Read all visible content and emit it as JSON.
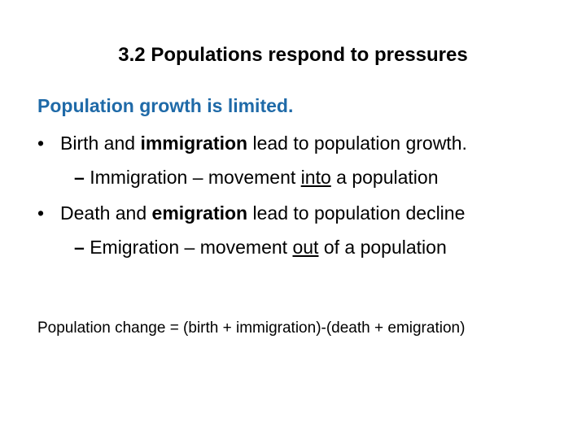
{
  "slide": {
    "title": "3.2 Populations respond to pressures",
    "subtitle": "Population growth is limited.",
    "bullet_char": "•",
    "dash_char": "–",
    "bullets": [
      {
        "pre": "Birth and ",
        "bold": "immigration",
        "post": " lead to population growth.",
        "sub": {
          "text_a": "Immigration – movement ",
          "underlined": "into",
          "text_b": " a population"
        }
      },
      {
        "pre": "Death and ",
        "bold": "emigration",
        "post": " lead to population decline",
        "sub": {
          "text_a": "Emigration – movement ",
          "underlined": "out",
          "text_b": " of a population"
        }
      }
    ],
    "equation": "Population change = (birth + immigration)-(death + emigration)"
  },
  "colors": {
    "subtitle": "#1f6aa8",
    "text": "#000000",
    "background": "#ffffff"
  }
}
